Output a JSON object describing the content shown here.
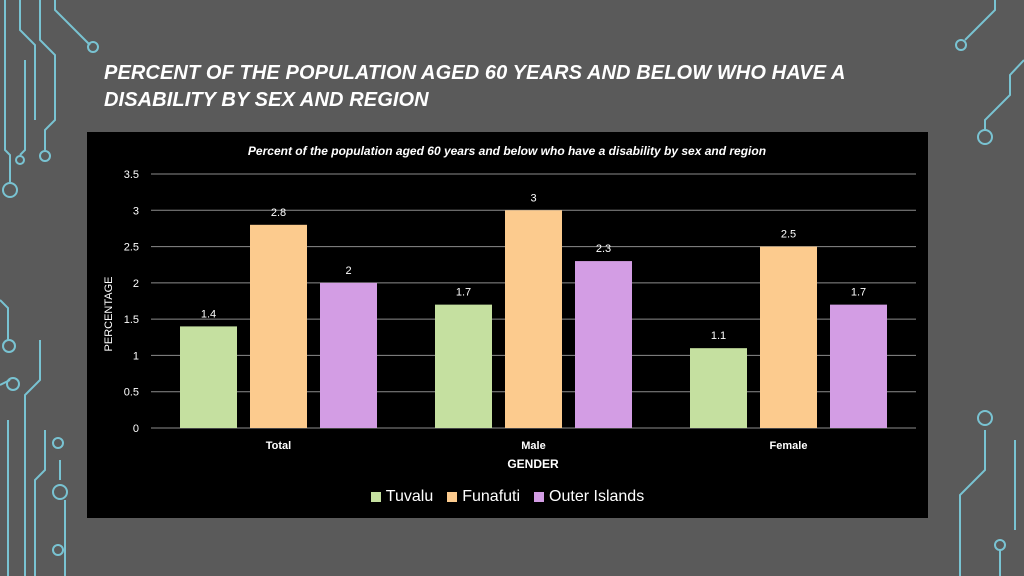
{
  "slide": {
    "title": "PERCENT OF THE POPULATION AGED 60 YEARS AND BELOW WHO HAVE A DISABILITY BY SEX AND REGION"
  },
  "colors": {
    "background": "#5a5a5a",
    "accent_circuit": "#7fd6e8",
    "Tuvalu": "#c5e0a0",
    "Funafuti": "#fccb8e",
    "Outer Islands": "#d39de4"
  },
  "chart_data": {
    "type": "bar",
    "title": "Percent of the population aged 60 years and below who have a disability by sex and region",
    "xlabel": "GENDER",
    "ylabel": "PERCENTAGE",
    "categories": [
      "Total",
      "Male",
      "Female"
    ],
    "series": [
      {
        "name": "Tuvalu",
        "values": [
          1.4,
          1.7,
          1.1
        ]
      },
      {
        "name": "Funafuti",
        "values": [
          2.8,
          3,
          2.5
        ]
      },
      {
        "name": "Outer Islands",
        "values": [
          2,
          2.3,
          1.7
        ]
      }
    ],
    "ylim": [
      0,
      3.5
    ],
    "yticks": [
      "0",
      "0.5",
      "1",
      "1.5",
      "2",
      "2.5",
      "3",
      "3.5"
    ],
    "grid": true,
    "legend_position": "bottom"
  }
}
